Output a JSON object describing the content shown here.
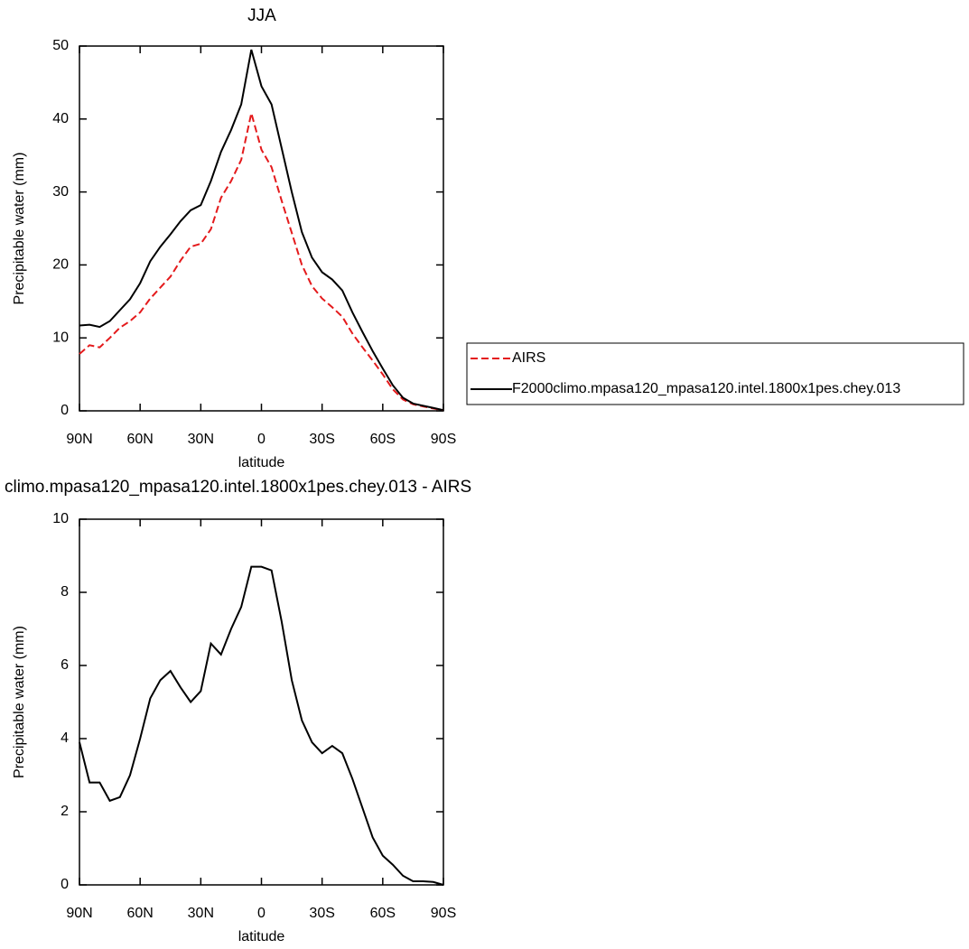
{
  "chart_data": [
    {
      "type": "line",
      "title": "JJA",
      "xlabel": "latitude",
      "ylabel": "Precipitable water (mm)",
      "x": [
        90,
        85,
        80,
        75,
        70,
        65,
        60,
        55,
        50,
        45,
        40,
        35,
        30,
        25,
        20,
        15,
        10,
        5,
        0,
        -5,
        -10,
        -15,
        -20,
        -25,
        -30,
        -35,
        -40,
        -45,
        -50,
        -55,
        -60,
        -65,
        -70,
        -75,
        -80,
        -85,
        -90
      ],
      "xlim": [
        90,
        -90
      ],
      "xticks": [
        {
          "value": 90,
          "label": "90N"
        },
        {
          "value": 60,
          "label": "60N"
        },
        {
          "value": 30,
          "label": "30N"
        },
        0,
        {
          "value": -30,
          "label": "30S"
        },
        {
          "value": -60,
          "label": "60S"
        },
        {
          "value": -90,
          "label": "90S"
        }
      ],
      "ylim": [
        0,
        50
      ],
      "yticks": [
        0,
        10,
        20,
        30,
        40,
        50
      ],
      "legend": "right",
      "series": [
        {
          "name": "AIRS",
          "color": "#e41a1c",
          "dash": true,
          "values": [
            7.8,
            9.0,
            8.7,
            10.0,
            11.4,
            12.3,
            13.5,
            15.4,
            16.9,
            18.4,
            20.6,
            22.5,
            22.9,
            24.9,
            29.2,
            31.5,
            34.4,
            40.8,
            35.8,
            33.4,
            28.8,
            24.4,
            20.0,
            17.1,
            15.4,
            14.2,
            12.9,
            10.6,
            8.7,
            6.9,
            5.0,
            2.95,
            1.55,
            0.9,
            0.6,
            0.32,
            0.1
          ]
        },
        {
          "name": "F2000climo.mpasa120_mpasa120.intel.1800x1pes.chey.013",
          "color": "#000000",
          "dash": false,
          "values": [
            11.7,
            11.8,
            11.5,
            12.3,
            13.8,
            15.3,
            17.5,
            20.5,
            22.5,
            24.2,
            26.0,
            27.5,
            28.2,
            31.5,
            35.5,
            38.5,
            42.0,
            49.5,
            44.5,
            42.0,
            36.0,
            30.0,
            24.5,
            21.0,
            19.0,
            18.0,
            16.5,
            13.5,
            10.8,
            8.2,
            5.8,
            3.5,
            1.8,
            1.0,
            0.7,
            0.4,
            0.1
          ]
        }
      ]
    },
    {
      "type": "line",
      "title": "climo.mpasa120_mpasa120.intel.1800x1pes.chey.013 - AIRS",
      "xlabel": "latitude",
      "ylabel": "Precipitable water (mm)",
      "x": [
        90,
        85,
        80,
        75,
        70,
        65,
        60,
        55,
        50,
        45,
        40,
        35,
        30,
        25,
        20,
        15,
        10,
        5,
        0,
        -5,
        -10,
        -15,
        -20,
        -25,
        -30,
        -35,
        -40,
        -45,
        -50,
        -55,
        -60,
        -65,
        -70,
        -75,
        -80,
        -85,
        -90
      ],
      "xlim": [
        90,
        -90
      ],
      "xticks": [
        {
          "value": 90,
          "label": "90N"
        },
        {
          "value": 60,
          "label": "60N"
        },
        {
          "value": 30,
          "label": "30N"
        },
        0,
        {
          "value": -30,
          "label": "30S"
        },
        {
          "value": -60,
          "label": "60S"
        },
        {
          "value": -90,
          "label": "90S"
        }
      ],
      "ylim": [
        0,
        10
      ],
      "yticks": [
        0,
        2,
        4,
        6,
        8,
        10
      ],
      "series": [
        {
          "color": "#000000",
          "dash": false,
          "values": [
            3.9,
            2.8,
            2.8,
            2.3,
            2.4,
            3.0,
            4.0,
            5.1,
            5.6,
            5.85,
            5.4,
            5.0,
            5.3,
            6.6,
            6.3,
            7.0,
            7.6,
            8.7,
            8.7,
            8.6,
            7.2,
            5.6,
            4.5,
            3.9,
            3.6,
            3.8,
            3.6,
            2.9,
            2.1,
            1.3,
            0.8,
            0.55,
            0.25,
            0.1,
            0.1,
            0.08,
            0.0
          ]
        }
      ]
    }
  ]
}
